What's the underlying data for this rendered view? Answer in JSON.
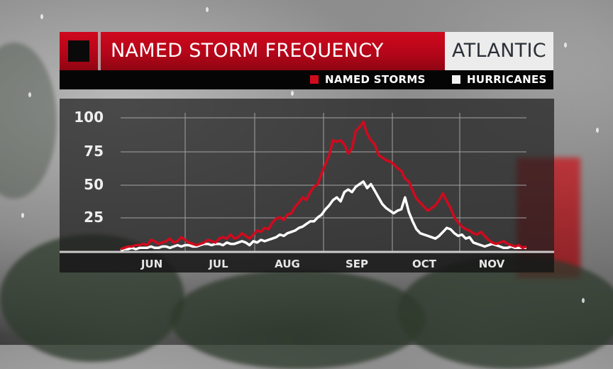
{
  "title_bar": {
    "title": "NAMED STORM FREQUENCY",
    "region": "ATLANTIC",
    "icon": "square-logo-icon"
  },
  "legend": {
    "items": [
      {
        "label": "NAMED STORMS",
        "color": "#d10a1e"
      },
      {
        "label": "HURRICANES",
        "color": "#ffffff"
      }
    ]
  },
  "chart_data": {
    "type": "line",
    "title": "NAMED STORM FREQUENCY",
    "subtitle": "ATLANTIC",
    "xlabel": "",
    "ylabel": "",
    "ylim": [
      0,
      100
    ],
    "yticks": [
      25,
      50,
      75,
      100
    ],
    "x_tick_labels": [
      "JUN",
      "JUL",
      "AUG",
      "SEP",
      "OCT",
      "NOV"
    ],
    "grid": true,
    "legend_position": "top-right",
    "x_start": "Jun 1",
    "x_end": "Nov 30",
    "series": [
      {
        "name": "NAMED STORMS",
        "color": "#d10a1e",
        "values": [
          1,
          2,
          3,
          3,
          4,
          4,
          5,
          4,
          8,
          7,
          5,
          6,
          7,
          9,
          6,
          7,
          10,
          8,
          6,
          5,
          4,
          5,
          6,
          8,
          7,
          6,
          9,
          10,
          9,
          12,
          9,
          10,
          13,
          11,
          9,
          12,
          15,
          14,
          17,
          16,
          21,
          24,
          25,
          23,
          27,
          28,
          33,
          36,
          40,
          38,
          44,
          48,
          50,
          58,
          65,
          72,
          83,
          82,
          83,
          80,
          73,
          77,
          90,
          93,
          97,
          88,
          83,
          80,
          72,
          70,
          68,
          67,
          65,
          62,
          60,
          54,
          52,
          45,
          39,
          36,
          33,
          30,
          32,
          34,
          38,
          43,
          37,
          32,
          25,
          21,
          18,
          16,
          15,
          13,
          12,
          14,
          11,
          8,
          6,
          5,
          6,
          7,
          5,
          4,
          3,
          4,
          2,
          3
        ]
      },
      {
        "name": "HURRICANES",
        "color": "#ffffff",
        "values": [
          0,
          1,
          1,
          2,
          1,
          2,
          2,
          2,
          3,
          2,
          2,
          3,
          3,
          2,
          3,
          4,
          3,
          4,
          4,
          3,
          3,
          4,
          5,
          5,
          4,
          5,
          5,
          4,
          6,
          5,
          5,
          6,
          7,
          6,
          4,
          7,
          6,
          8,
          7,
          8,
          9,
          10,
          12,
          11,
          13,
          14,
          15,
          17,
          18,
          20,
          22,
          22,
          25,
          27,
          31,
          34,
          38,
          40,
          37,
          44,
          46,
          44,
          48,
          50,
          52,
          47,
          50,
          45,
          40,
          35,
          32,
          30,
          28,
          30,
          31,
          40,
          29,
          22,
          16,
          13,
          12,
          11,
          10,
          9,
          11,
          14,
          17,
          16,
          13,
          11,
          12,
          9,
          10,
          6,
          5,
          4,
          3,
          4,
          5,
          4,
          3,
          2,
          2,
          3,
          2,
          2,
          2,
          2
        ]
      }
    ]
  }
}
